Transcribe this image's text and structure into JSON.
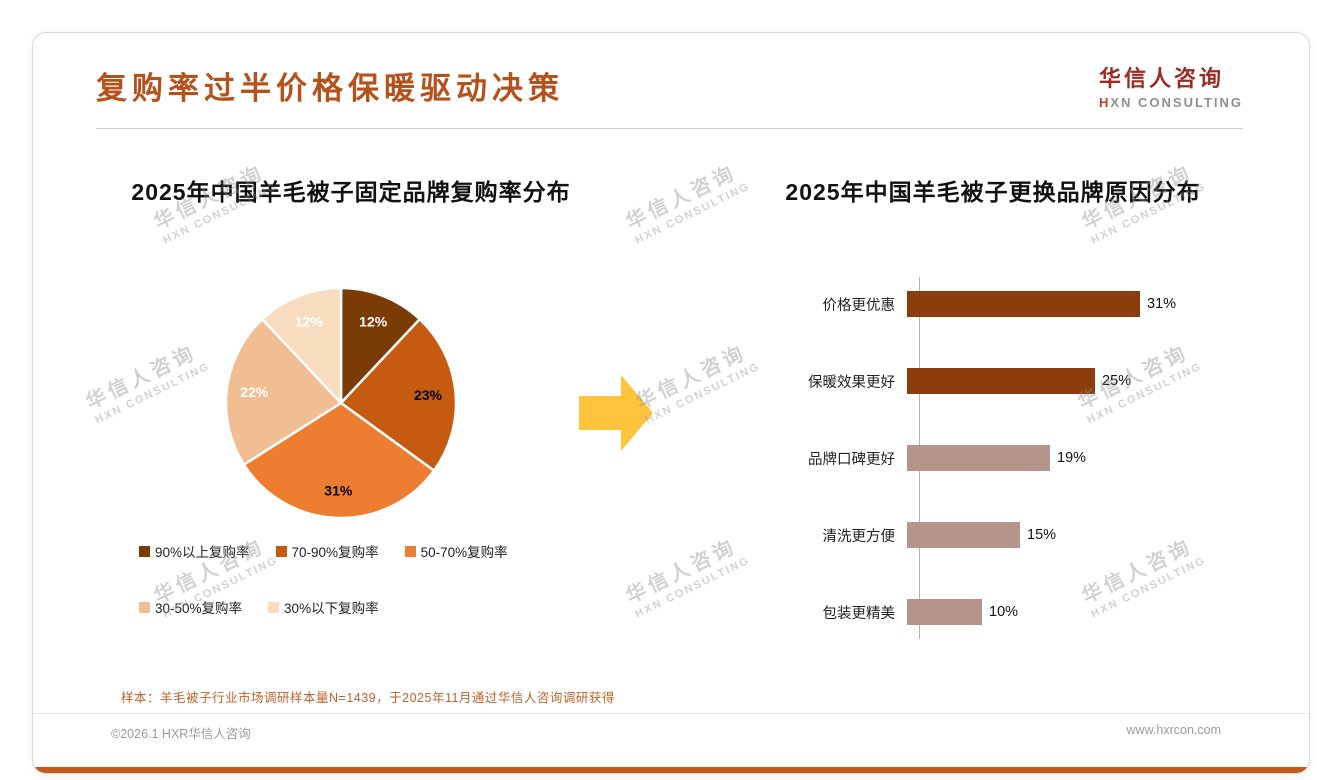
{
  "slide": {
    "title": "复购率过半价格保暖驱动决策",
    "logo": {
      "cn": "华信人咨询",
      "en_initial": "H",
      "en_rest": "XN CONSULTING"
    },
    "watermark": {
      "cn": "华信人咨询",
      "en": "HXN CONSULTING"
    },
    "footnote": "样本：羊毛被子行业市场调研样本量N=1439，于2025年11月通过华信人咨询调研获得",
    "footer_left": "©2026.1 HXR华信人咨询",
    "footer_right": "www.hxrcon.com"
  },
  "colors": {
    "title_accent": "#B5521B",
    "logo_red": "#9C2B23",
    "arrow": "#FFC43B",
    "bottom_bar": "#C2591C",
    "footnote": "#C0622B"
  },
  "chart_data": [
    {
      "type": "pie",
      "title": "2025年中国羊毛被子固定品牌复购率分布",
      "labels": [
        "90%以上复购率",
        "70-90%复购率",
        "50-70%复购率",
        "30-50%复购率",
        "30%以下复购率"
      ],
      "values": [
        12,
        23,
        31,
        22,
        12
      ],
      "unit": "%",
      "colors": [
        "#7B3B05",
        "#C55A11",
        "#ED7D31",
        "#F0BE92",
        "#F7DCBF"
      ],
      "label_colors": [
        "#FFFFFF",
        "#000000",
        "#000000",
        "#FFFFFF",
        "#FFFFFF"
      ],
      "legend_position": "bottom",
      "start_angle_deg": 0,
      "direction": "clockwise"
    },
    {
      "type": "bar",
      "orientation": "horizontal",
      "title": "2025年中国羊毛被子更换品牌原因分布",
      "categories": [
        "价格更优惠",
        "保暖效果更好",
        "品牌口碑更好",
        "清洗更方便",
        "包装更精美"
      ],
      "values": [
        31,
        25,
        19,
        15,
        10
      ],
      "unit": "%",
      "colors": [
        "#8C3D0B",
        "#8C3D0B",
        "#B5948B",
        "#B5948B",
        "#B5948B"
      ],
      "xlim": [
        0,
        35
      ],
      "grid": false,
      "value_labels": "outside-end"
    }
  ]
}
